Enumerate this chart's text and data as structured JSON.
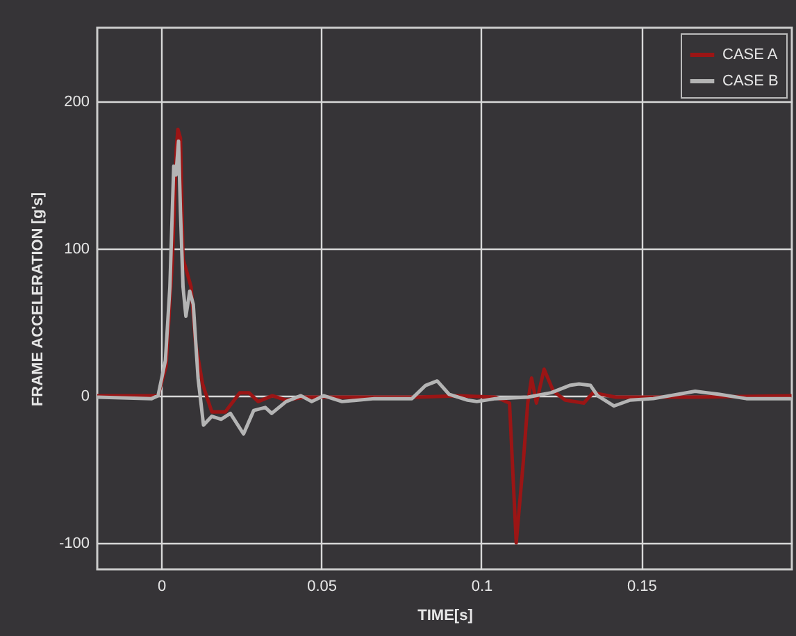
{
  "chart_data": {
    "type": "line",
    "xlabel": "TIME[s]",
    "ylabel": "FRAME ACCELERATION [g's]",
    "xlim": [
      -0.02,
      0.197
    ],
    "xticks": [
      0,
      0.05,
      0.1,
      0.15
    ],
    "ylim": [
      -118,
      250
    ],
    "yticks": [
      -100,
      0,
      100,
      200
    ],
    "grid": true,
    "legend": "top right",
    "marker": "none",
    "line_style": "solid",
    "series": [
      {
        "name": "CASE A",
        "color": "#9b1515",
        "x": [
          -0.02,
          -0.001,
          0.0015,
          0.0035,
          0.0047,
          0.0052,
          0.006,
          0.0068,
          0.008,
          0.0093,
          0.0107,
          0.0129,
          0.0158,
          0.02,
          0.0245,
          0.0274,
          0.0303,
          0.0347,
          0.039,
          0.0448,
          0.06,
          0.08,
          0.0928,
          0.1044,
          0.1088,
          0.1109,
          0.1131,
          0.1145,
          0.1157,
          0.1172,
          0.1196,
          0.1225,
          0.1262,
          0.132,
          0.1349,
          0.142,
          0.165,
          0.1969
        ],
        "values": [
          0,
          0,
          20,
          93,
          168,
          181,
          175,
          93,
          84,
          74,
          36,
          8,
          -11,
          -11,
          2,
          2,
          -4,
          0,
          -3,
          -1,
          -1,
          -1,
          0,
          -1,
          -5,
          -100,
          -45,
          -5,
          12,
          -5,
          18,
          3,
          -3,
          -5,
          2,
          -1,
          -1,
          0
        ]
      },
      {
        "name": "CASE B",
        "color": "#b4b4b4",
        "x": [
          -0.02,
          -0.003,
          -0.001,
          0.0013,
          0.0027,
          0.0039,
          0.0046,
          0.0054,
          0.006,
          0.0068,
          0.0077,
          0.0089,
          0.01,
          0.0115,
          0.0132,
          0.0158,
          0.0187,
          0.0216,
          0.0257,
          0.0289,
          0.0325,
          0.0345,
          0.039,
          0.0436,
          0.047,
          0.0507,
          0.0565,
          0.0666,
          0.0783,
          0.0826,
          0.0862,
          0.0899,
          0.0957,
          0.0986,
          0.1044,
          0.1145,
          0.1218,
          0.1276,
          0.1305,
          0.1341,
          0.1363,
          0.1414,
          0.1465,
          0.1537,
          0.1668,
          0.1741,
          0.1828,
          0.1969
        ],
        "values": [
          -1,
          -2,
          0,
          24,
          74,
          156,
          150,
          173,
          125,
          74,
          54,
          71,
          62,
          12,
          -20,
          -14,
          -16,
          -12,
          -26,
          -10,
          -8,
          -12,
          -4,
          0,
          -4,
          0,
          -4,
          -2,
          -2,
          7,
          10,
          1,
          -3,
          -4,
          -2,
          -1,
          2,
          7,
          8,
          7,
          0,
          -7,
          -3,
          -2,
          3,
          1,
          -2,
          -2
        ]
      }
    ]
  }
}
